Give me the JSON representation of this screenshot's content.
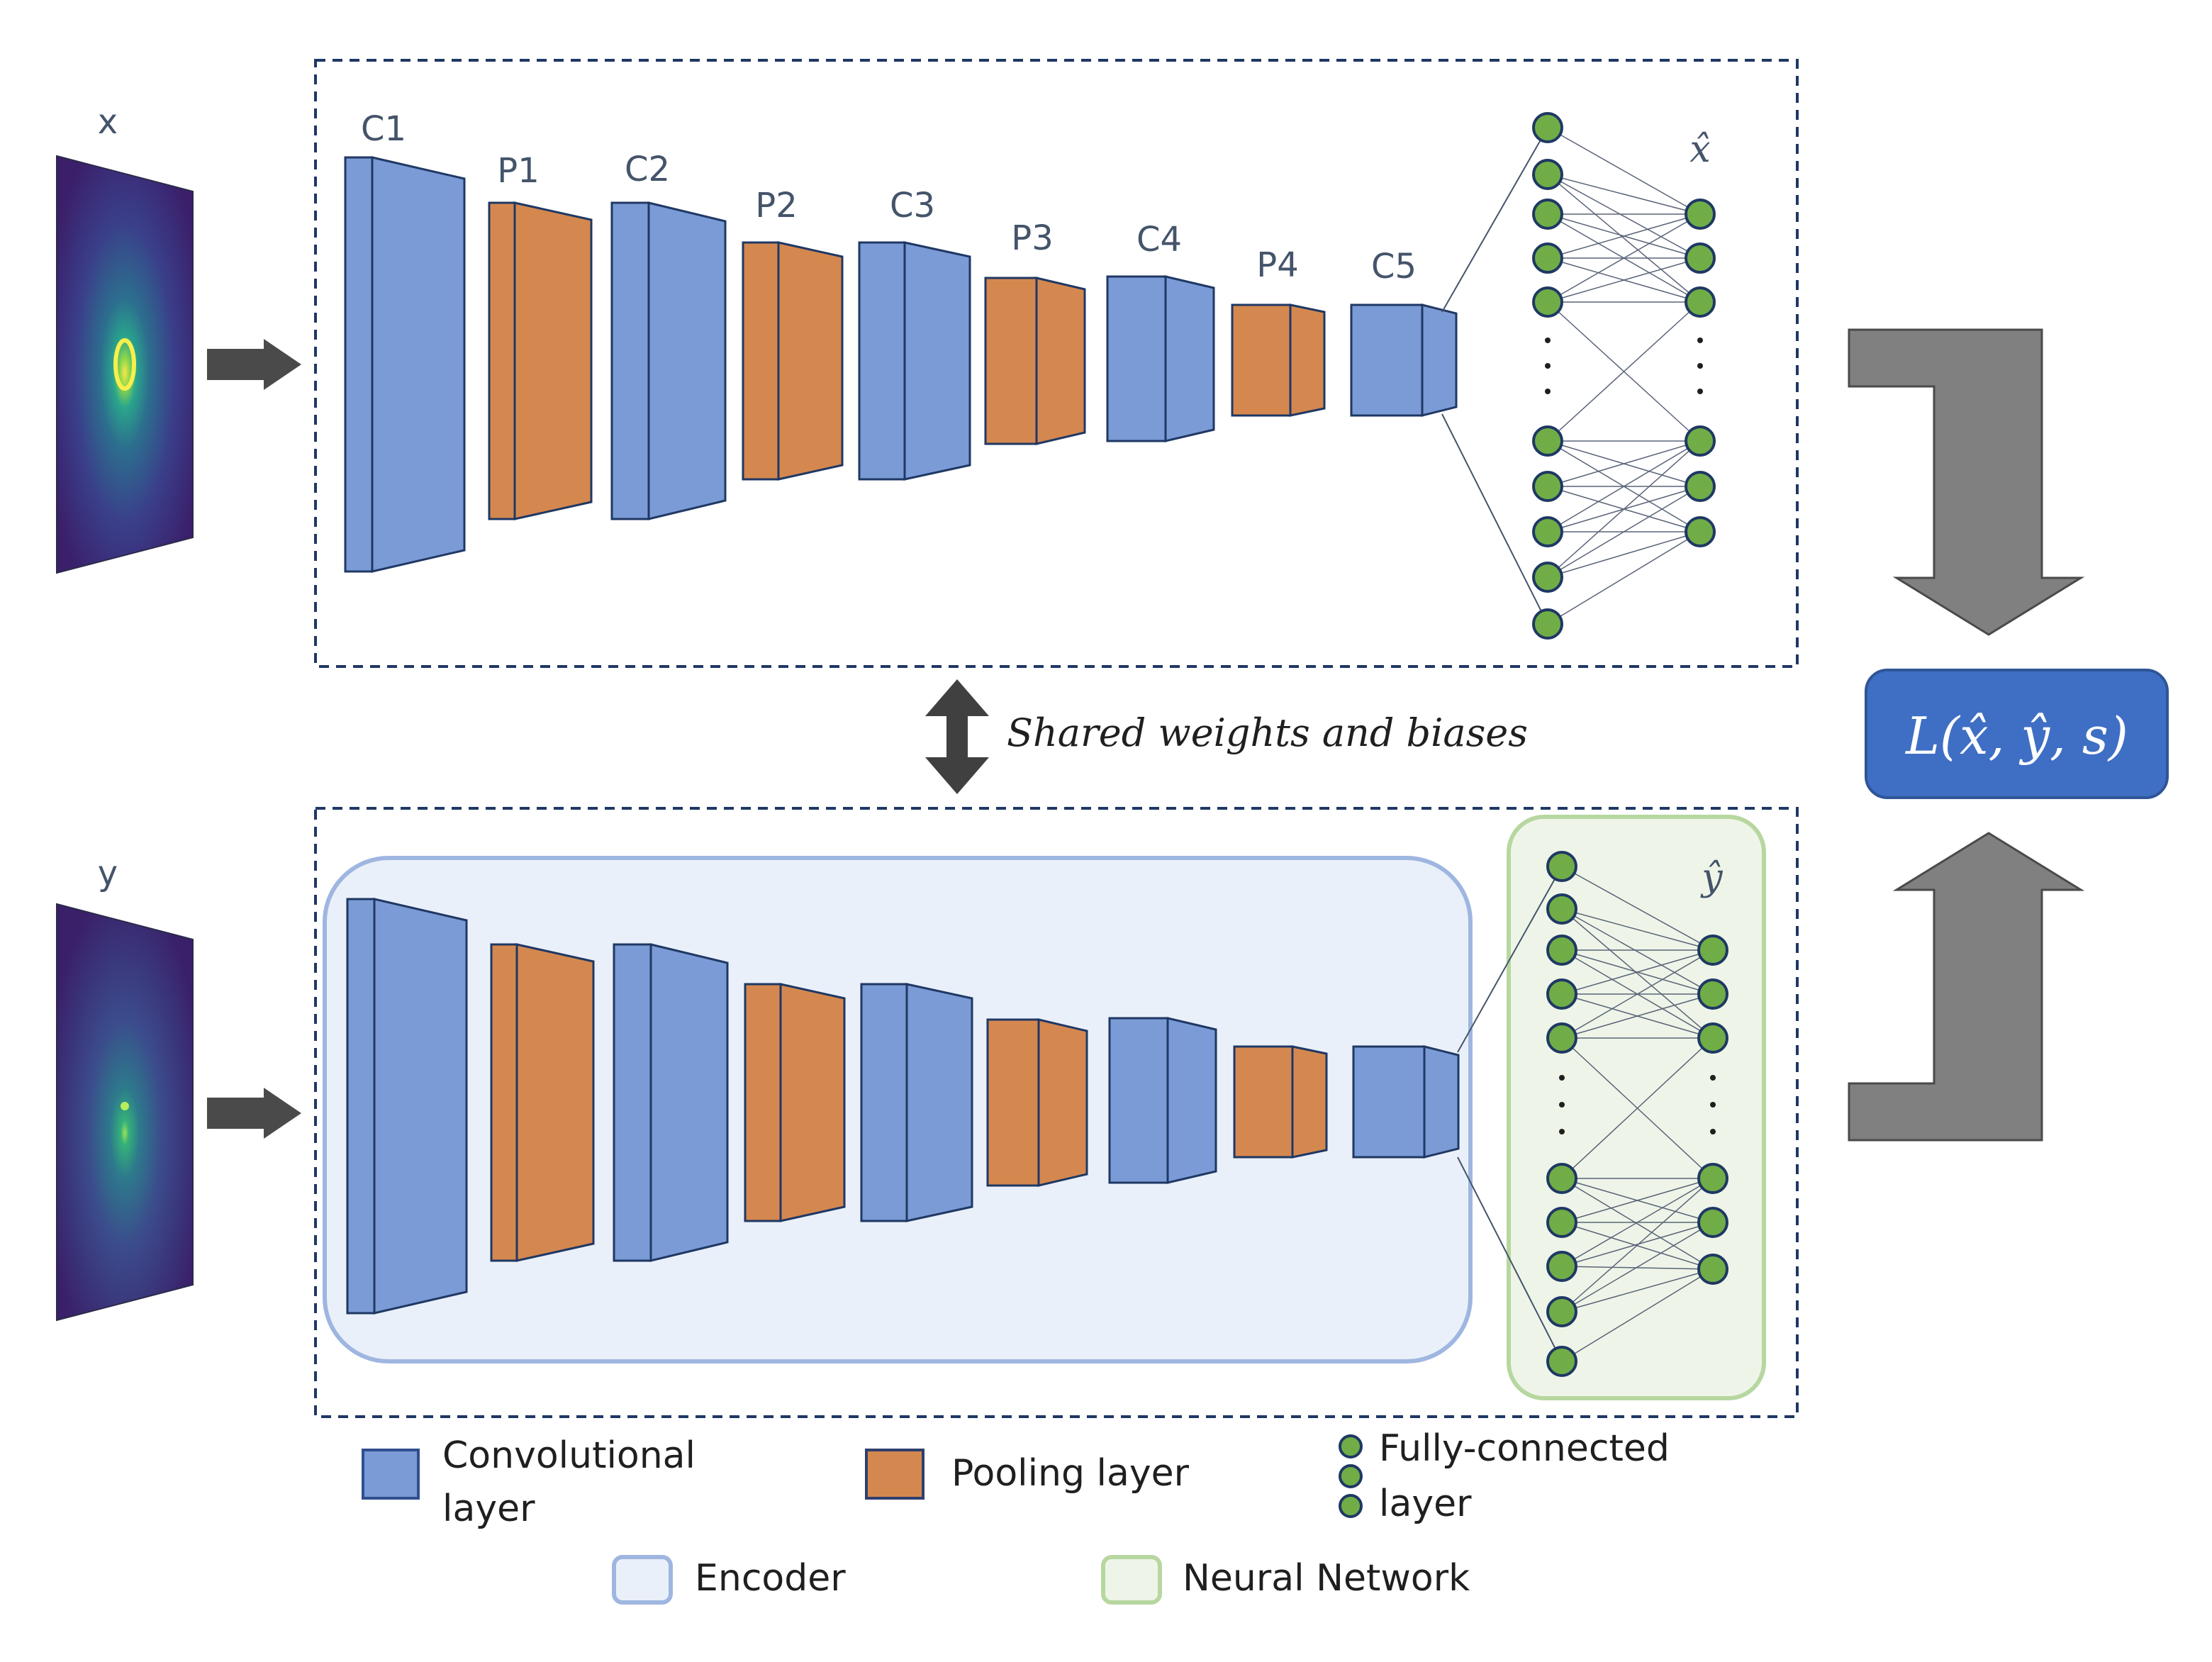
{
  "inputs": {
    "top_label": "x",
    "bottom_label": "y"
  },
  "layers": {
    "labels": [
      "C1",
      "P1",
      "C2",
      "P2",
      "C3",
      "P3",
      "C4",
      "P4",
      "C5"
    ],
    "types": [
      "conv",
      "pool",
      "conv",
      "pool",
      "conv",
      "pool",
      "conv",
      "pool",
      "conv"
    ]
  },
  "outputs": {
    "top_label": "x̂",
    "bottom_label": "ŷ"
  },
  "shared_text": "Shared weights and biases",
  "loss_text": "L(x̂, ŷ, s)",
  "legend": {
    "conv": "Convolutional\nlayer",
    "conv_line1": "Convolutional",
    "conv_line2": "layer",
    "pool": "Pooling layer",
    "fc_line1": "Fully-connected",
    "fc_line2": "layer",
    "encoder": "Encoder",
    "neural_network": "Neural Network"
  },
  "colors": {
    "conv": "#7b9bd6",
    "pool": "#d4884f",
    "neuron": "#70ad47",
    "encoder_fill": "#eaf0f9",
    "encoder_stroke": "#9eb6e0",
    "nn_fill": "#eef5e8",
    "nn_stroke": "#b7d7a0",
    "loss_box": "#3f6fc4",
    "arrow_gray": "#808080",
    "arrow_dark": "#4a4a4a",
    "dashed": "#1f3864"
  }
}
